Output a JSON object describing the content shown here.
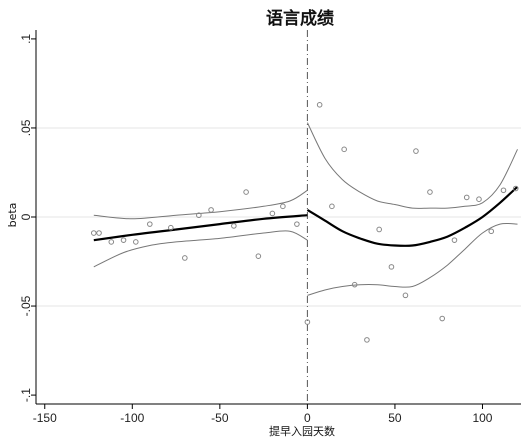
{
  "chart_data": {
    "type": "scatter",
    "title": "语言成绩",
    "xlabel": "提早入园天数",
    "ylabel": "beta",
    "xlim": [
      -155,
      122
    ],
    "ylim": [
      -0.105,
      0.105
    ],
    "x_ticks": [
      -150,
      -100,
      -50,
      0,
      50,
      100
    ],
    "x_tick_labels": [
      "-150",
      "-100",
      "-50",
      "0",
      "50",
      "100"
    ],
    "y_ticks": [
      -0.1,
      -0.05,
      0,
      0.05,
      0.1
    ],
    "y_tick_labels": [
      "-.1",
      "-.05",
      "0",
      ".05",
      ".1"
    ],
    "grid": "horizontal",
    "cutoff_x": 0,
    "colors": {
      "fit": "#000000",
      "ci": "#777777",
      "points": "#888888",
      "grid": "#e6e6e6",
      "cutoff": "#555555"
    },
    "series": [
      {
        "role": "points",
        "points": [
          [
            -122,
            -0.009
          ],
          [
            -119,
            -0.009
          ],
          [
            -112,
            -0.014
          ],
          [
            -105,
            -0.013
          ],
          [
            -98,
            -0.014
          ],
          [
            -90,
            -0.004
          ],
          [
            -78,
            -0.006
          ],
          [
            -70,
            -0.023
          ],
          [
            -62,
            0.001
          ],
          [
            -55,
            0.004
          ],
          [
            -42,
            -0.005
          ],
          [
            -35,
            0.014
          ],
          [
            -28,
            -0.022
          ],
          [
            -20,
            0.002
          ],
          [
            -14,
            0.006
          ],
          [
            -6,
            -0.004
          ],
          [
            0,
            -0.059
          ],
          [
            7,
            0.063
          ],
          [
            14,
            0.006
          ],
          [
            21,
            0.038
          ],
          [
            27,
            -0.038
          ],
          [
            34,
            -0.069
          ],
          [
            41,
            -0.007
          ],
          [
            48,
            -0.028
          ],
          [
            56,
            -0.044
          ],
          [
            62,
            0.037
          ],
          [
            70,
            0.014
          ],
          [
            77,
            -0.057
          ],
          [
            84,
            -0.013
          ],
          [
            91,
            0.011
          ],
          [
            98,
            0.01
          ],
          [
            105,
            -0.008
          ],
          [
            112,
            0.015
          ],
          [
            119,
            0.016
          ]
        ]
      },
      {
        "role": "fit-left",
        "points": [
          [
            -122,
            -0.013
          ],
          [
            -100,
            -0.01
          ],
          [
            -75,
            -0.007
          ],
          [
            -50,
            -0.004
          ],
          [
            -25,
            -0.001
          ],
          [
            0,
            0.001
          ]
        ]
      },
      {
        "role": "ci-upper-left",
        "points": [
          [
            -122,
            0.001
          ],
          [
            -100,
            -0.001
          ],
          [
            -75,
            0.001
          ],
          [
            -50,
            0.003
          ],
          [
            -25,
            0.006
          ],
          [
            -10,
            0.009
          ],
          [
            0,
            0.015
          ]
        ]
      },
      {
        "role": "ci-lower-left",
        "points": [
          [
            -122,
            -0.028
          ],
          [
            -105,
            -0.02
          ],
          [
            -90,
            -0.016
          ],
          [
            -75,
            -0.014
          ],
          [
            -50,
            -0.012
          ],
          [
            -25,
            -0.009
          ],
          [
            -10,
            -0.008
          ],
          [
            0,
            -0.013
          ]
        ]
      },
      {
        "role": "fit-right",
        "points": [
          [
            0,
            0.004
          ],
          [
            10,
            -0.002
          ],
          [
            20,
            -0.008
          ],
          [
            30,
            -0.012
          ],
          [
            40,
            -0.015
          ],
          [
            50,
            -0.016
          ],
          [
            60,
            -0.016
          ],
          [
            70,
            -0.014
          ],
          [
            80,
            -0.011
          ],
          [
            90,
            -0.006
          ],
          [
            100,
            0.0
          ],
          [
            110,
            0.008
          ],
          [
            120,
            0.017
          ]
        ]
      },
      {
        "role": "ci-upper-right",
        "points": [
          [
            0,
            0.053
          ],
          [
            10,
            0.033
          ],
          [
            20,
            0.021
          ],
          [
            30,
            0.014
          ],
          [
            40,
            0.009
          ],
          [
            50,
            0.007
          ],
          [
            60,
            0.005
          ],
          [
            70,
            0.005
          ],
          [
            80,
            0.005
          ],
          [
            90,
            0.006
          ],
          [
            100,
            0.008
          ],
          [
            110,
            0.018
          ],
          [
            120,
            0.038
          ]
        ]
      },
      {
        "role": "ci-lower-right",
        "points": [
          [
            0,
            -0.044
          ],
          [
            10,
            -0.041
          ],
          [
            20,
            -0.039
          ],
          [
            30,
            -0.038
          ],
          [
            40,
            -0.038
          ],
          [
            50,
            -0.039
          ],
          [
            60,
            -0.039
          ],
          [
            70,
            -0.034
          ],
          [
            80,
            -0.027
          ],
          [
            90,
            -0.018
          ],
          [
            100,
            -0.009
          ],
          [
            110,
            -0.004
          ],
          [
            120,
            -0.004
          ]
        ]
      }
    ]
  }
}
